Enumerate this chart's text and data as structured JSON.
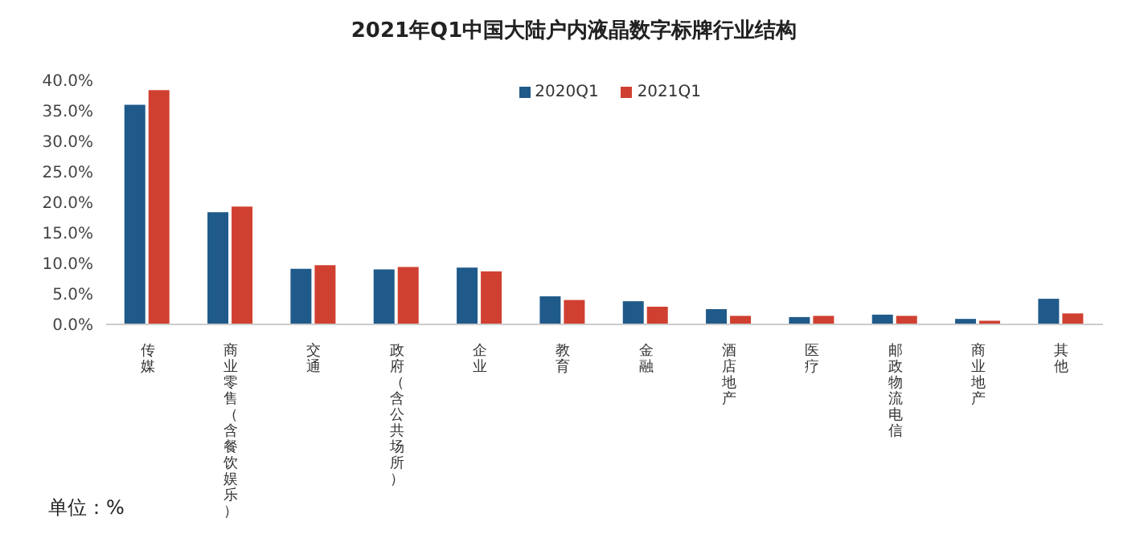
{
  "chart_data": {
    "type": "bar",
    "title": "2021年Q1中国大陆户内液晶数字标牌行业结构",
    "categories": [
      "传媒",
      "商业零售（含餐饮娱乐）",
      "交通",
      "政府（含公共场所）",
      "企业",
      "教育",
      "金融",
      "酒店地产",
      "医疗",
      "邮政物流电信",
      "商业地产",
      "其他"
    ],
    "series": [
      {
        "name": "2020Q1",
        "color": "#1f5a8a",
        "values": [
          36.0,
          18.4,
          9.1,
          9.0,
          9.3,
          4.6,
          3.8,
          2.5,
          1.2,
          1.6,
          0.9,
          4.2
        ]
      },
      {
        "name": "2021Q1",
        "color": "#d04030",
        "values": [
          38.4,
          19.3,
          9.7,
          9.4,
          8.7,
          4.0,
          2.9,
          1.4,
          1.4,
          1.4,
          0.6,
          1.8
        ]
      }
    ],
    "ylim": [
      0,
      40
    ],
    "yticks": [
      {
        "value": 0,
        "label": "0.0%"
      },
      {
        "value": 5,
        "label": "5.0%"
      },
      {
        "value": 10,
        "label": "10.0%"
      },
      {
        "value": 15,
        "label": "15.0%"
      },
      {
        "value": 20,
        "label": "20.0%"
      },
      {
        "value": 25,
        "label": "25.0%"
      },
      {
        "value": 30,
        "label": "30.0%"
      },
      {
        "value": 35,
        "label": "35.0%"
      },
      {
        "value": 40,
        "label": "40.0%"
      }
    ],
    "grid": false,
    "legend": "top right",
    "annotations": [
      "单位：%"
    ]
  }
}
